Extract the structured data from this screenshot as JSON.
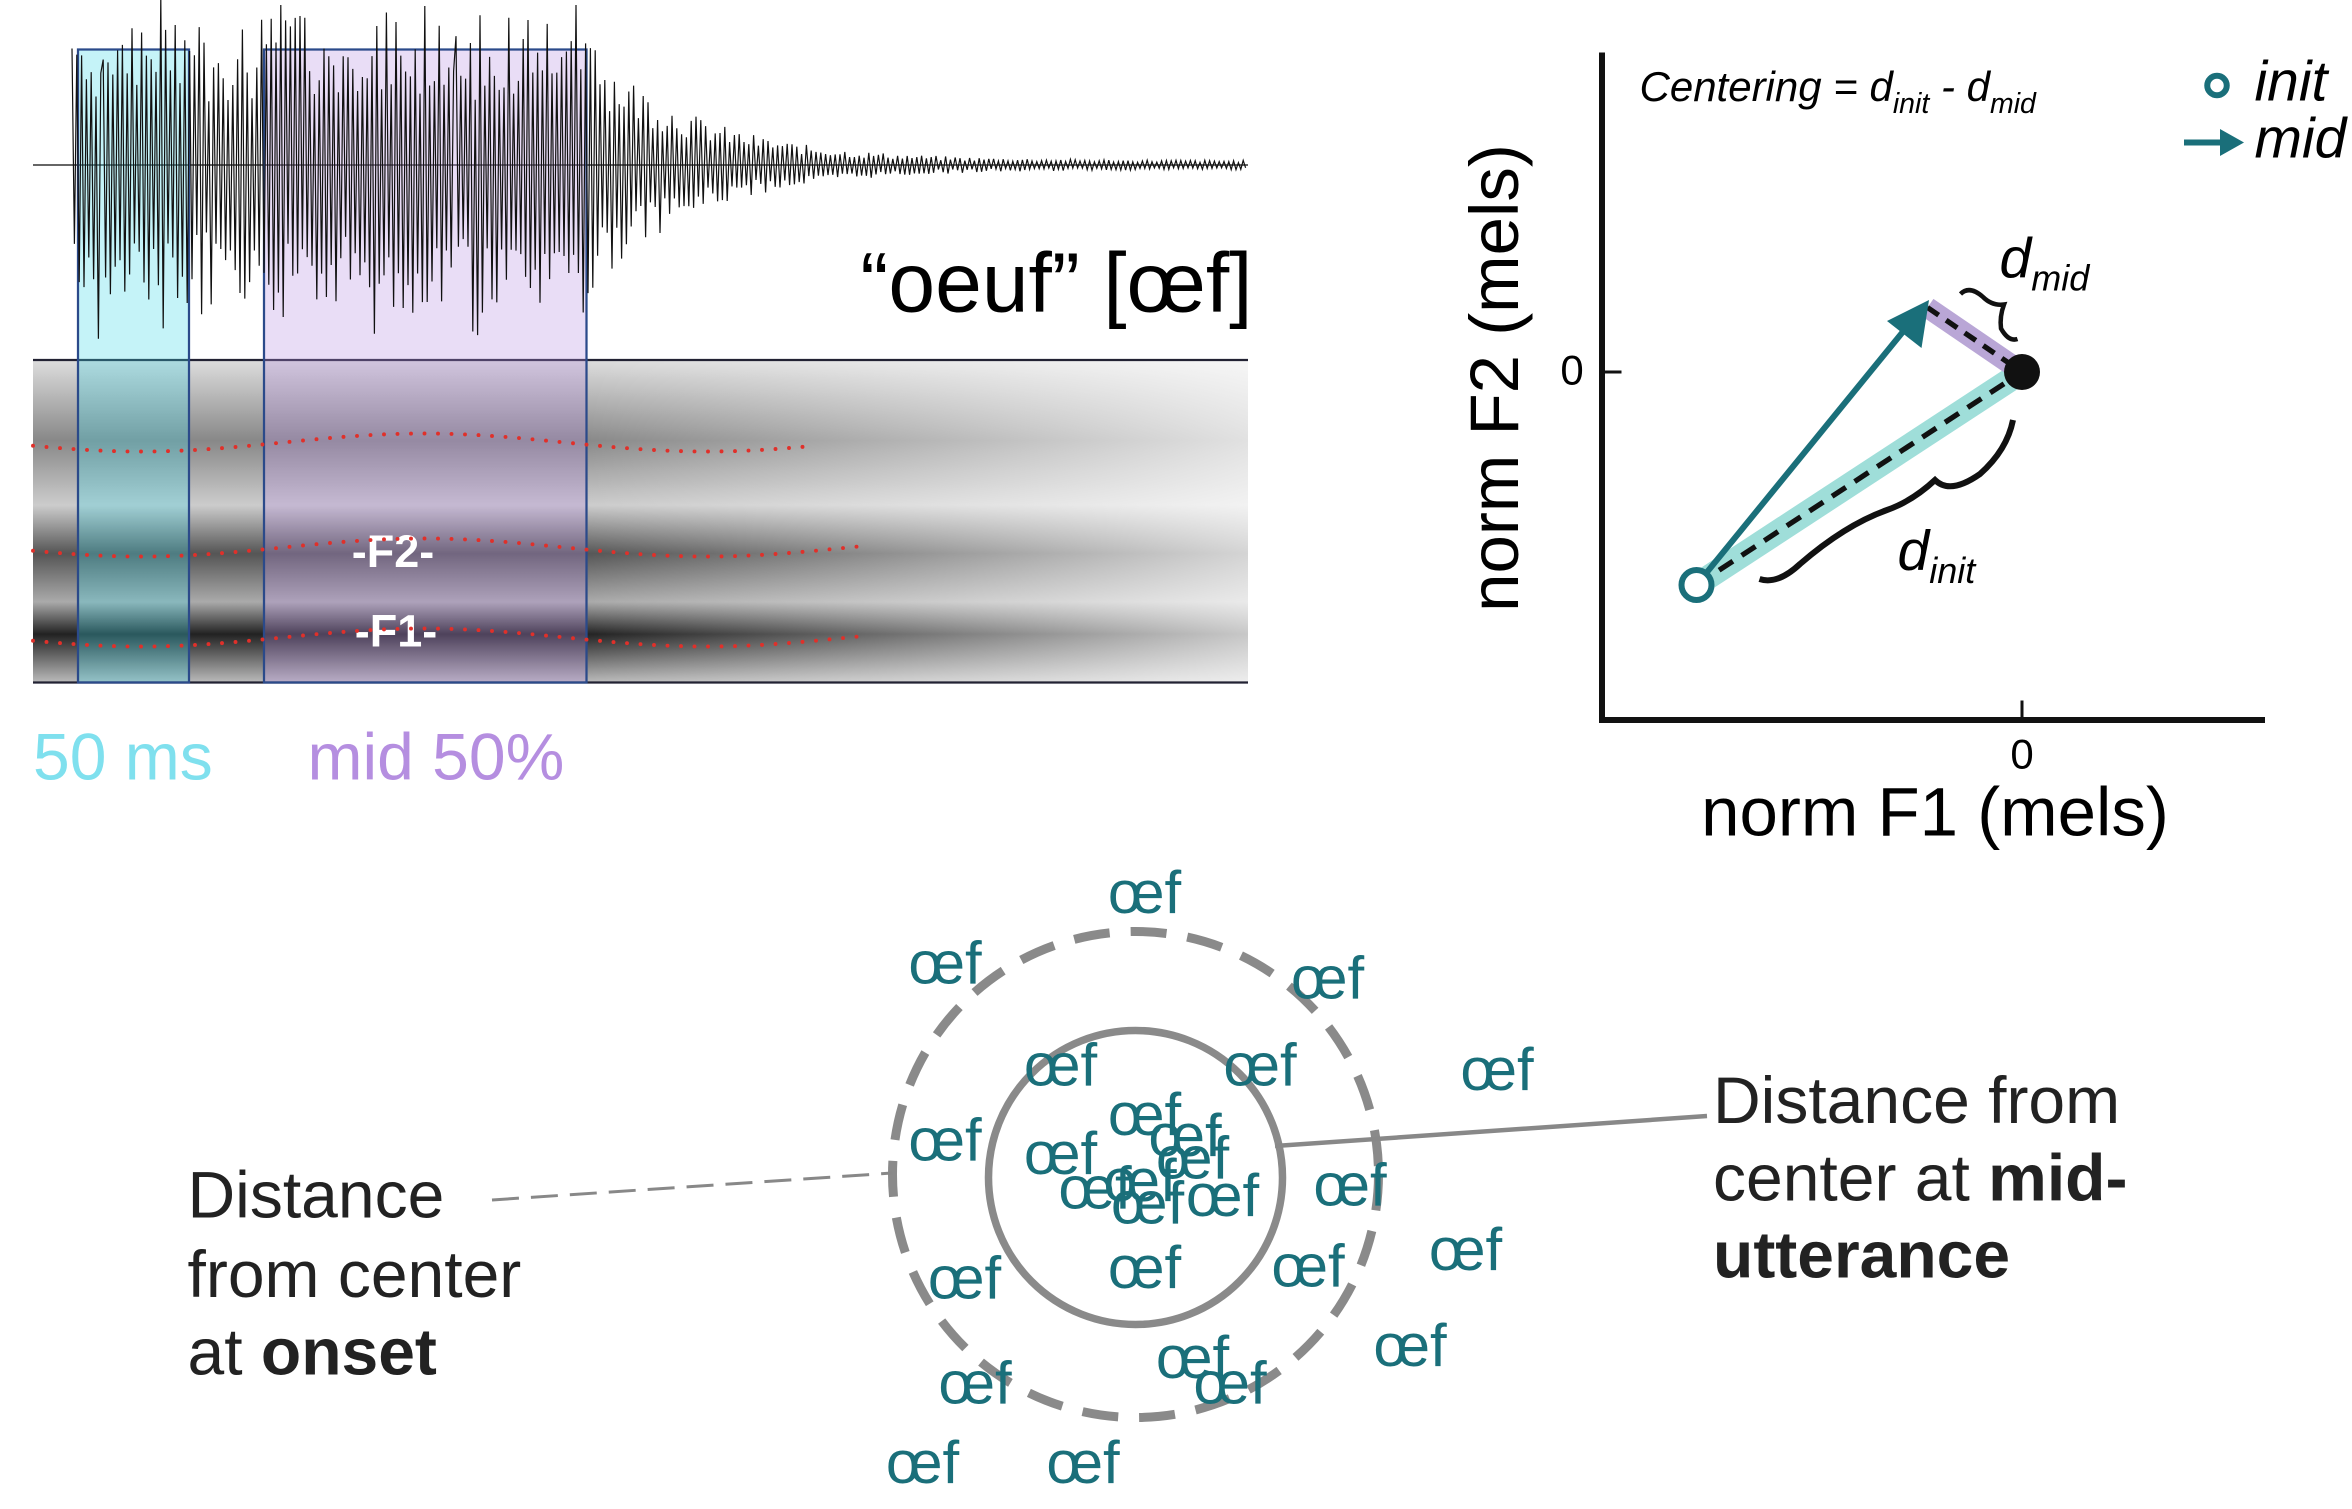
{
  "waveform": {
    "title": "“oeuf” [œf]",
    "formant_labels": [
      "-F2-",
      "-F1-"
    ],
    "window_labels": [
      "50 ms",
      "mid 50%"
    ]
  },
  "plot": {
    "formula": {
      "lhs": "Centering = d",
      "sub1": "init",
      "mid": " - d",
      "sub2": "mid"
    },
    "legend": [
      "init",
      "mid"
    ],
    "d_mid": {
      "d": "d",
      "sub": "mid"
    },
    "d_init": {
      "d": "d",
      "sub": "init"
    },
    "y_tick": "0",
    "x_tick": "0",
    "y_label": "norm F2 (mels)",
    "x_label": "norm F1 (mels)"
  },
  "cloud": {
    "words": [
      "œf",
      "œf",
      "œf",
      "œf",
      "œf",
      "œf",
      "œf",
      "œf",
      "œf",
      "œf",
      "œf",
      "œf",
      "œf",
      "œf",
      "œf",
      "œf",
      "œf",
      "œf",
      "œf",
      "œf",
      "œf",
      "œf",
      "œf",
      "œf",
      "œf",
      "œf"
    ],
    "onset_label": [
      "Distance",
      "from center",
      "at ",
      "onset"
    ],
    "mid_label": [
      "Distance from",
      "center at ",
      "mid-",
      "utterance"
    ]
  }
}
